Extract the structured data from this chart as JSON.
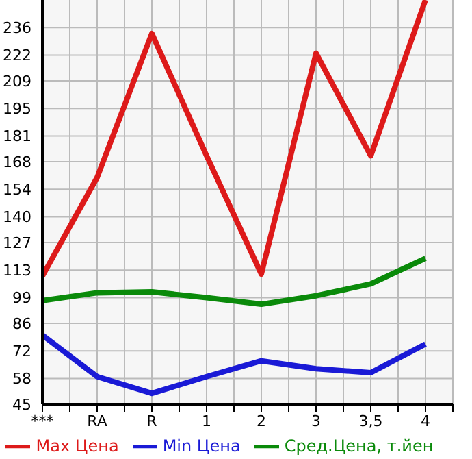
{
  "chart_data": {
    "type": "line",
    "categories": [
      "***",
      "RA",
      "R",
      "1",
      "2",
      "3",
      "3,5",
      "4"
    ],
    "series": [
      {
        "name": "Max Цена",
        "color": "#dd1a1a",
        "values": [
          110,
          160,
          233,
          171,
          111,
          223,
          171,
          250
        ]
      },
      {
        "name": "Min Цена",
        "color": "#1a1ad6",
        "values": [
          80,
          59,
          50.5,
          59,
          67,
          63,
          61,
          75.5
        ]
      },
      {
        "name": "Сред.Цена, т.йен",
        "color": "#0a8a0a",
        "values": [
          97.5,
          101.5,
          102,
          99,
          95.7,
          100,
          106,
          119
        ]
      }
    ],
    "ylim": [
      45,
      250
    ],
    "yticks": [
      45,
      58,
      72,
      86,
      99,
      113,
      127,
      140,
      154,
      168,
      181,
      195,
      209,
      222,
      236
    ],
    "grid": true,
    "legend": "bottom",
    "marker": "none",
    "line_style": "solid"
  }
}
